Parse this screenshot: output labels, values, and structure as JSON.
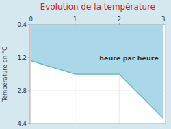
{
  "chart_data": {
    "type": "line",
    "title": "Evolution de la température",
    "y_label": "Température en °C",
    "x": [
      0,
      1,
      2,
      3
    ],
    "values": [
      -1.35,
      -2.0,
      -2.0,
      -4.15
    ],
    "color": "#66bbcc",
    "xlim": [
      -0.02,
      3.05
    ],
    "ylim": [
      -4.4,
      0.4
    ],
    "xticks": [
      0,
      1,
      2,
      3
    ],
    "yticks": [
      0.4,
      -1.2,
      -2.8,
      -4.4
    ],
    "grid": true,
    "annotations": [
      {
        "text": "heure par heure",
        "x": 1.55,
        "y": -1.1
      }
    ]
  }
}
